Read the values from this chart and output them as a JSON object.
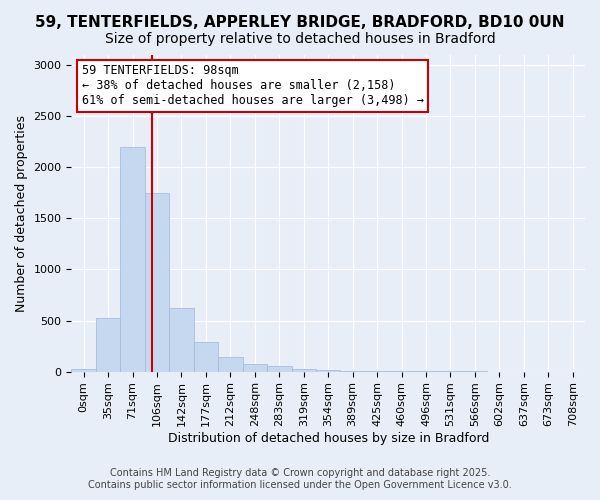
{
  "title_line1": "59, TENTERFIELDS, APPERLEY BRIDGE, BRADFORD, BD10 0UN",
  "title_line2": "Size of property relative to detached houses in Bradford",
  "xlabel": "Distribution of detached houses by size in Bradford",
  "ylabel": "Number of detached properties",
  "bin_labels": [
    "0sqm",
    "35sqm",
    "71sqm",
    "106sqm",
    "142sqm",
    "177sqm",
    "212sqm",
    "248sqm",
    "283sqm",
    "319sqm",
    "354sqm",
    "389sqm",
    "425sqm",
    "460sqm",
    "496sqm",
    "531sqm",
    "566sqm",
    "602sqm",
    "637sqm",
    "673sqm",
    "708sqm"
  ],
  "bar_values": [
    30,
    520,
    2200,
    1750,
    620,
    285,
    140,
    75,
    50,
    30,
    15,
    8,
    5,
    3,
    2,
    1,
    1,
    0,
    0,
    0,
    0
  ],
  "bar_color": "#c5d8f0",
  "bar_edgecolor": "#a0b8d8",
  "background_color": "#e8eef8",
  "grid_color": "#ffffff",
  "red_line_x": 2.8,
  "annotation_text": "59 TENTERFIELDS: 98sqm\n← 38% of detached houses are smaller (2,158)\n61% of semi-detached houses are larger (3,498) →",
  "annotation_box_color": "#ffffff",
  "annotation_box_edge": "#cc0000",
  "ylim": [
    0,
    3100
  ],
  "yticks": [
    0,
    500,
    1000,
    1500,
    2000,
    2500,
    3000
  ],
  "footer_line1": "Contains HM Land Registry data © Crown copyright and database right 2025.",
  "footer_line2": "Contains public sector information licensed under the Open Government Licence v3.0.",
  "title_fontsize": 11,
  "subtitle_fontsize": 10,
  "axis_label_fontsize": 9,
  "tick_fontsize": 8,
  "annotation_fontsize": 8.5,
  "footer_fontsize": 7
}
